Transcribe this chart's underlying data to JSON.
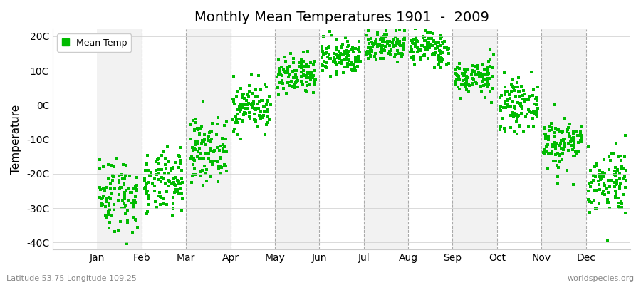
{
  "title": "Monthly Mean Temperatures 1901  -  2009",
  "ylabel": "Temperature",
  "xlabel_labels": [
    "Jan",
    "Feb",
    "Mar",
    "Apr",
    "May",
    "Jun",
    "Jul",
    "Aug",
    "Sep",
    "Oct",
    "Nov",
    "Dec"
  ],
  "ytick_values": [
    -40,
    -30,
    -20,
    -10,
    0,
    10,
    20
  ],
  "ytick_labels": [
    "-40C",
    "-30C",
    "-20C",
    "-10C",
    "0C",
    "10C",
    "20C"
  ],
  "ylim": [
    -42,
    22
  ],
  "xlim": [
    0,
    13
  ],
  "legend_label": "Mean Temp",
  "marker_color": "#00bb00",
  "background_color": "#ffffff",
  "band_color_even": "#f2f2f2",
  "band_color_odd": "#ffffff",
  "footer_left": "Latitude 53.75 Longitude 109.25",
  "footer_right": "worldspecies.org",
  "monthly_means": [
    -26.0,
    -23.0,
    -13.0,
    -0.5,
    8.0,
    14.0,
    17.5,
    16.5,
    8.0,
    0.0,
    -11.0,
    -22.0
  ],
  "monthly_stds": [
    5.5,
    4.5,
    4.5,
    3.5,
    3.0,
    2.5,
    2.5,
    2.5,
    2.5,
    3.5,
    4.0,
    5.0
  ],
  "n_years": 109,
  "tick_positions": [
    1,
    2,
    3,
    4,
    5,
    6,
    7,
    8,
    9,
    10,
    11,
    12
  ]
}
